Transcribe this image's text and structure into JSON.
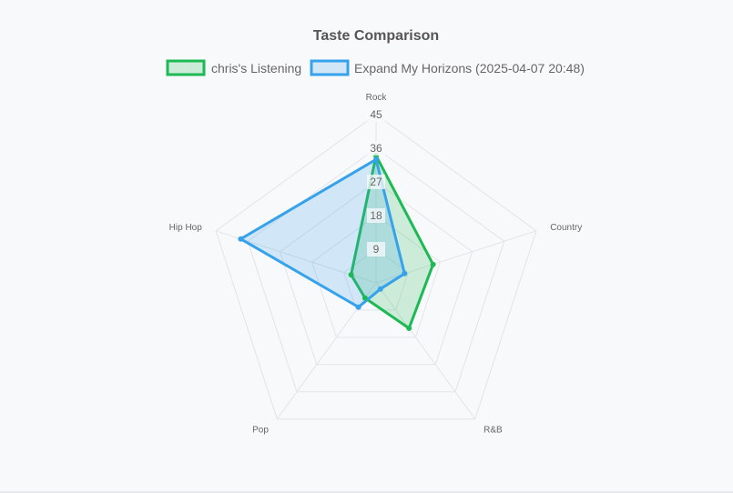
{
  "chart_data": {
    "type": "radar",
    "title": "Taste Comparison",
    "categories": [
      "Rock",
      "Country",
      "R&B",
      "Pop",
      "Hip Hop"
    ],
    "rlim": [
      0,
      45
    ],
    "ticks": [
      9,
      18,
      27,
      36,
      45
    ],
    "grid": true,
    "legend": "top",
    "series": [
      {
        "name": "chris's Listening",
        "values": [
          34,
          16,
          15,
          5,
          7
        ],
        "color": "#1db954",
        "fill": "rgba(29,185,84,0.2)"
      },
      {
        "name": "Expand My Horizons (2025-04-07 20:48)",
        "values": [
          33,
          8,
          2,
          8,
          38
        ],
        "color": "#36a2eb",
        "fill": "rgba(54,162,235,0.2)"
      }
    ]
  }
}
